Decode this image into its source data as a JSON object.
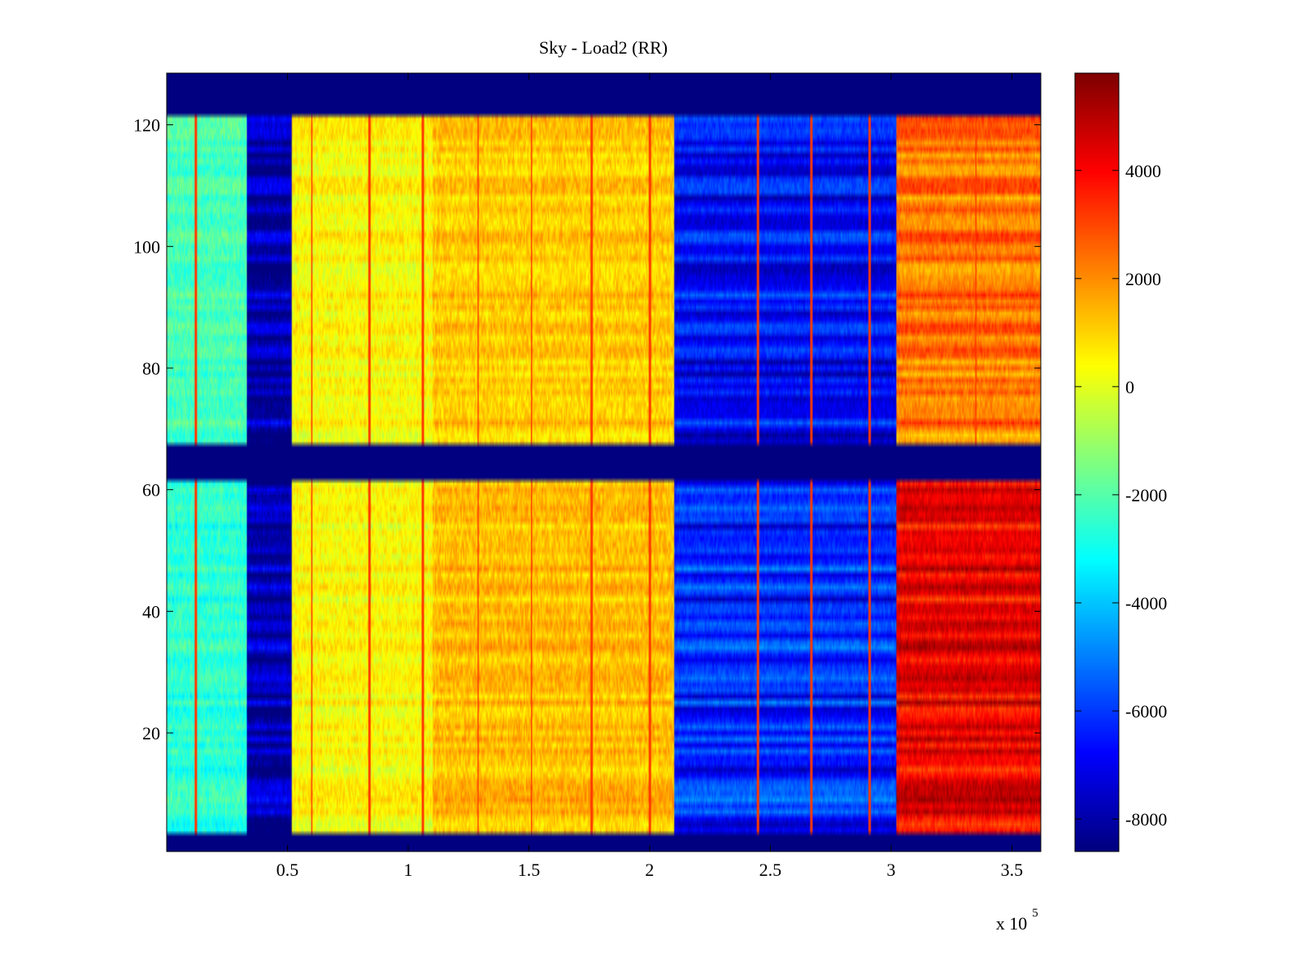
{
  "chart_data": {
    "type": "heatmap",
    "title": "Sky - Load2 (RR)",
    "xlabel": "",
    "ylabel": "",
    "x_multiplier_label": "x 10",
    "x_multiplier_exponent": "5",
    "xlim": [
      0,
      3.62
    ],
    "ylim": [
      0.5,
      128.5
    ],
    "xticks": [
      0.5,
      1,
      1.5,
      2,
      2.5,
      3,
      3.5
    ],
    "xtick_labels": [
      "0.5",
      "1",
      "1.5",
      "2",
      "2.5",
      "3",
      "3.5"
    ],
    "yticks": [
      20,
      40,
      60,
      80,
      100,
      120
    ],
    "ytick_labels": [
      "20",
      "40",
      "60",
      "80",
      "100",
      "120"
    ],
    "colormap": "jet",
    "clim": [
      -8600,
      5800
    ],
    "colorbar_ticks": [
      4000,
      2000,
      0,
      -2000,
      -4000,
      -6000,
      -8000
    ],
    "colorbar_tick_labels": [
      "4000",
      "2000",
      "0",
      "-2000",
      "-4000",
      "-6000",
      "-8000"
    ],
    "masked_row_bands": [
      [
        0.5,
        3.5
      ],
      [
        61.5,
        67.5
      ],
      [
        121.5,
        128.5
      ]
    ],
    "masked_value": -8600,
    "column_regions": [
      {
        "x_start": 0.0,
        "x_end": 0.33,
        "upper_value": -2200,
        "lower_value": -2600
      },
      {
        "x_start": 0.33,
        "x_end": 0.52,
        "upper_value": -8000,
        "lower_value": -8000
      },
      {
        "x_start": 0.52,
        "x_end": 1.1,
        "upper_value": 400,
        "lower_value": 400
      },
      {
        "x_start": 1.1,
        "x_end": 2.1,
        "upper_value": 1100,
        "lower_value": 1300
      },
      {
        "x_start": 2.1,
        "x_end": 3.02,
        "upper_value": -6800,
        "lower_value": -6300
      },
      {
        "x_start": 3.02,
        "x_end": 3.62,
        "upper_value": 2300,
        "lower_value": 4200
      }
    ],
    "vertical_spike_x": [
      0.12,
      0.6,
      0.84,
      1.06,
      1.29,
      1.51,
      1.76,
      2.0,
      2.45,
      2.67,
      2.91,
      3.35
    ],
    "vertical_spike_value": 3200
  }
}
